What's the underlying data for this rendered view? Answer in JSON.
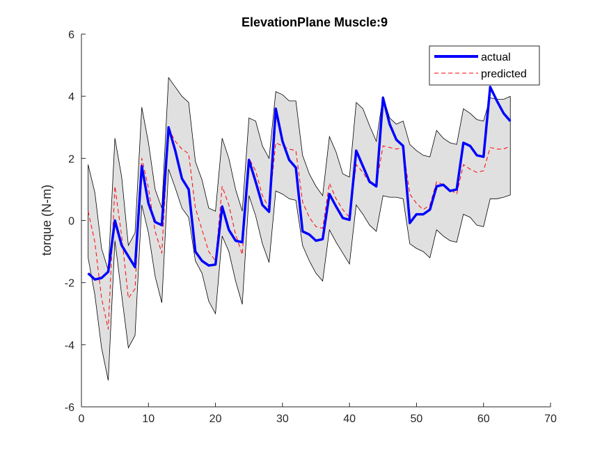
{
  "chart_data": {
    "type": "line",
    "title": "ElevationPlane Muscle:9",
    "xlabel": "",
    "ylabel": "torque (N-m)",
    "xlim": [
      0,
      70
    ],
    "ylim": [
      -6,
      6
    ],
    "xticks": [
      0,
      10,
      20,
      30,
      40,
      50,
      60,
      70
    ],
    "yticks": [
      -6,
      -4,
      -2,
      0,
      2,
      4,
      6
    ],
    "grid": false,
    "legend_position": "top-right",
    "x": [
      1,
      2,
      3,
      4,
      5,
      6,
      7,
      8,
      9,
      10,
      11,
      12,
      13,
      14,
      15,
      16,
      17,
      18,
      19,
      20,
      21,
      22,
      23,
      24,
      25,
      26,
      27,
      28,
      29,
      30,
      31,
      32,
      33,
      34,
      35,
      36,
      37,
      38,
      39,
      40,
      41,
      42,
      43,
      44,
      45,
      46,
      47,
      48,
      49,
      50,
      51,
      52,
      53,
      54,
      55,
      56,
      57,
      58,
      59,
      60,
      61,
      62,
      63,
      64
    ],
    "band": {
      "upper": [
        1.8,
        0.9,
        -0.9,
        -1.6,
        2.65,
        1.4,
        -0.8,
        -0.4,
        3.65,
        2.5,
        1.0,
        0.4,
        4.6,
        4.3,
        4.0,
        3.8,
        1.9,
        1.3,
        0.4,
        0.3,
        2.65,
        2.0,
        1.0,
        0.3,
        3.3,
        3.2,
        2.4,
        2.0,
        4.15,
        4.05,
        3.85,
        3.85,
        2.1,
        1.5,
        1.1,
        0.8,
        2.7,
        2.2,
        1.5,
        1.4,
        3.8,
        3.6,
        3.05,
        2.55,
        4.0,
        3.3,
        3.1,
        3.2,
        2.45,
        2.25,
        2.1,
        2.05,
        2.9,
        2.65,
        2.5,
        2.45,
        3.6,
        3.45,
        3.25,
        3.2,
        3.95,
        3.9,
        3.9,
        4.0
      ],
      "lower": [
        -1.2,
        -2.4,
        -4.1,
        -5.15,
        -0.65,
        -2.4,
        -4.1,
        -3.7,
        0.5,
        -0.4,
        -1.8,
        -2.65,
        1.65,
        1.05,
        0.4,
        0.1,
        -1.3,
        -1.7,
        -2.6,
        -3.0,
        -0.5,
        -1.0,
        -1.95,
        -2.7,
        0.8,
        0.15,
        -0.75,
        -1.35,
        0.95,
        0.85,
        0.7,
        0.65,
        -0.8,
        -1.3,
        -1.7,
        -1.95,
        -0.3,
        -0.7,
        -1.05,
        -1.4,
        0.5,
        0.2,
        -0.15,
        -0.35,
        0.8,
        0.75,
        0.75,
        0.7,
        -0.75,
        -0.9,
        -1.0,
        -1.2,
        -0.3,
        -0.5,
        -0.65,
        -0.7,
        0.2,
        0.1,
        -0.15,
        -0.2,
        0.7,
        0.7,
        0.75,
        0.82
      ]
    },
    "series": [
      {
        "name": "actual",
        "color": "#0000ff",
        "style": "solid",
        "values": [
          -1.7,
          -1.9,
          -1.85,
          -1.65,
          0.0,
          -0.8,
          -1.15,
          -1.5,
          1.75,
          0.55,
          -0.05,
          -0.15,
          3.0,
          2.25,
          1.35,
          1.0,
          -1.0,
          -1.3,
          -1.45,
          -1.42,
          0.45,
          -0.3,
          -0.65,
          -0.7,
          1.95,
          1.25,
          0.5,
          0.28,
          3.6,
          2.55,
          1.95,
          1.7,
          -0.35,
          -0.45,
          -0.65,
          -0.6,
          0.85,
          0.45,
          0.08,
          0.02,
          2.25,
          1.75,
          1.25,
          1.1,
          3.95,
          3.1,
          2.6,
          2.4,
          -0.08,
          0.2,
          0.2,
          0.35,
          1.1,
          1.15,
          0.95,
          1.0,
          2.5,
          2.4,
          2.1,
          2.05,
          4.3,
          3.85,
          3.45,
          3.2
        ]
      },
      {
        "name": "predicted",
        "color": "#ff0000",
        "style": "dashed",
        "values": [
          0.3,
          -0.7,
          -2.5,
          -3.5,
          1.1,
          -0.5,
          -2.5,
          -2.2,
          2.0,
          1.05,
          -0.35,
          -1.05,
          2.95,
          2.55,
          2.3,
          2.15,
          0.4,
          -0.3,
          -1.0,
          -1.3,
          1.1,
          0.5,
          -0.45,
          -1.1,
          2.0,
          1.6,
          0.8,
          0.4,
          2.5,
          2.4,
          2.3,
          2.25,
          0.6,
          0.1,
          -0.2,
          -0.25,
          1.2,
          0.7,
          0.35,
          0.1,
          1.8,
          1.55,
          1.2,
          1.15,
          2.4,
          2.35,
          2.3,
          2.35,
          0.85,
          0.55,
          0.35,
          0.5,
          1.25,
          1.15,
          1.0,
          0.85,
          1.8,
          1.65,
          1.55,
          1.6,
          2.35,
          2.3,
          2.3,
          2.4
        ]
      }
    ]
  }
}
